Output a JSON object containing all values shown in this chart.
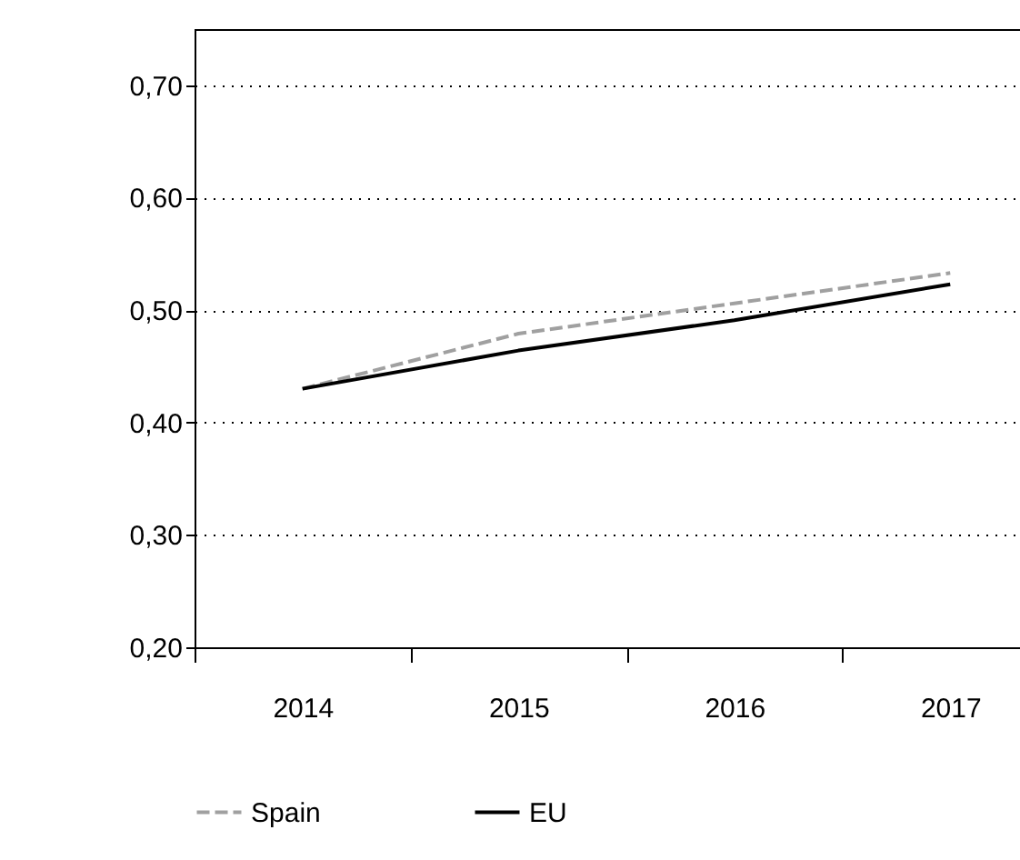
{
  "chart_data": {
    "type": "line",
    "categories": [
      "2014",
      "2015",
      "2016",
      "2017"
    ],
    "series": [
      {
        "name": "Spain",
        "color": "#a0a0a0",
        "line_style": "dashed",
        "values": [
          0.43,
          0.479,
          0.506,
          0.533
        ]
      },
      {
        "name": "EU",
        "color": "#000000",
        "line_style": "solid",
        "values": [
          0.43,
          0.464,
          0.491,
          0.523
        ]
      }
    ],
    "ylim": [
      0.2,
      0.75
    ],
    "yticks": [
      {
        "value": 0.2,
        "label": "0,20"
      },
      {
        "value": 0.3,
        "label": "0,30"
      },
      {
        "value": 0.4,
        "label": "0,40"
      },
      {
        "value": 0.5,
        "label": "0,50"
      },
      {
        "value": 0.6,
        "label": "0,60"
      },
      {
        "value": 0.7,
        "label": "0,70"
      }
    ],
    "grid": "y",
    "legend": "bottom",
    "marker": "none"
  }
}
